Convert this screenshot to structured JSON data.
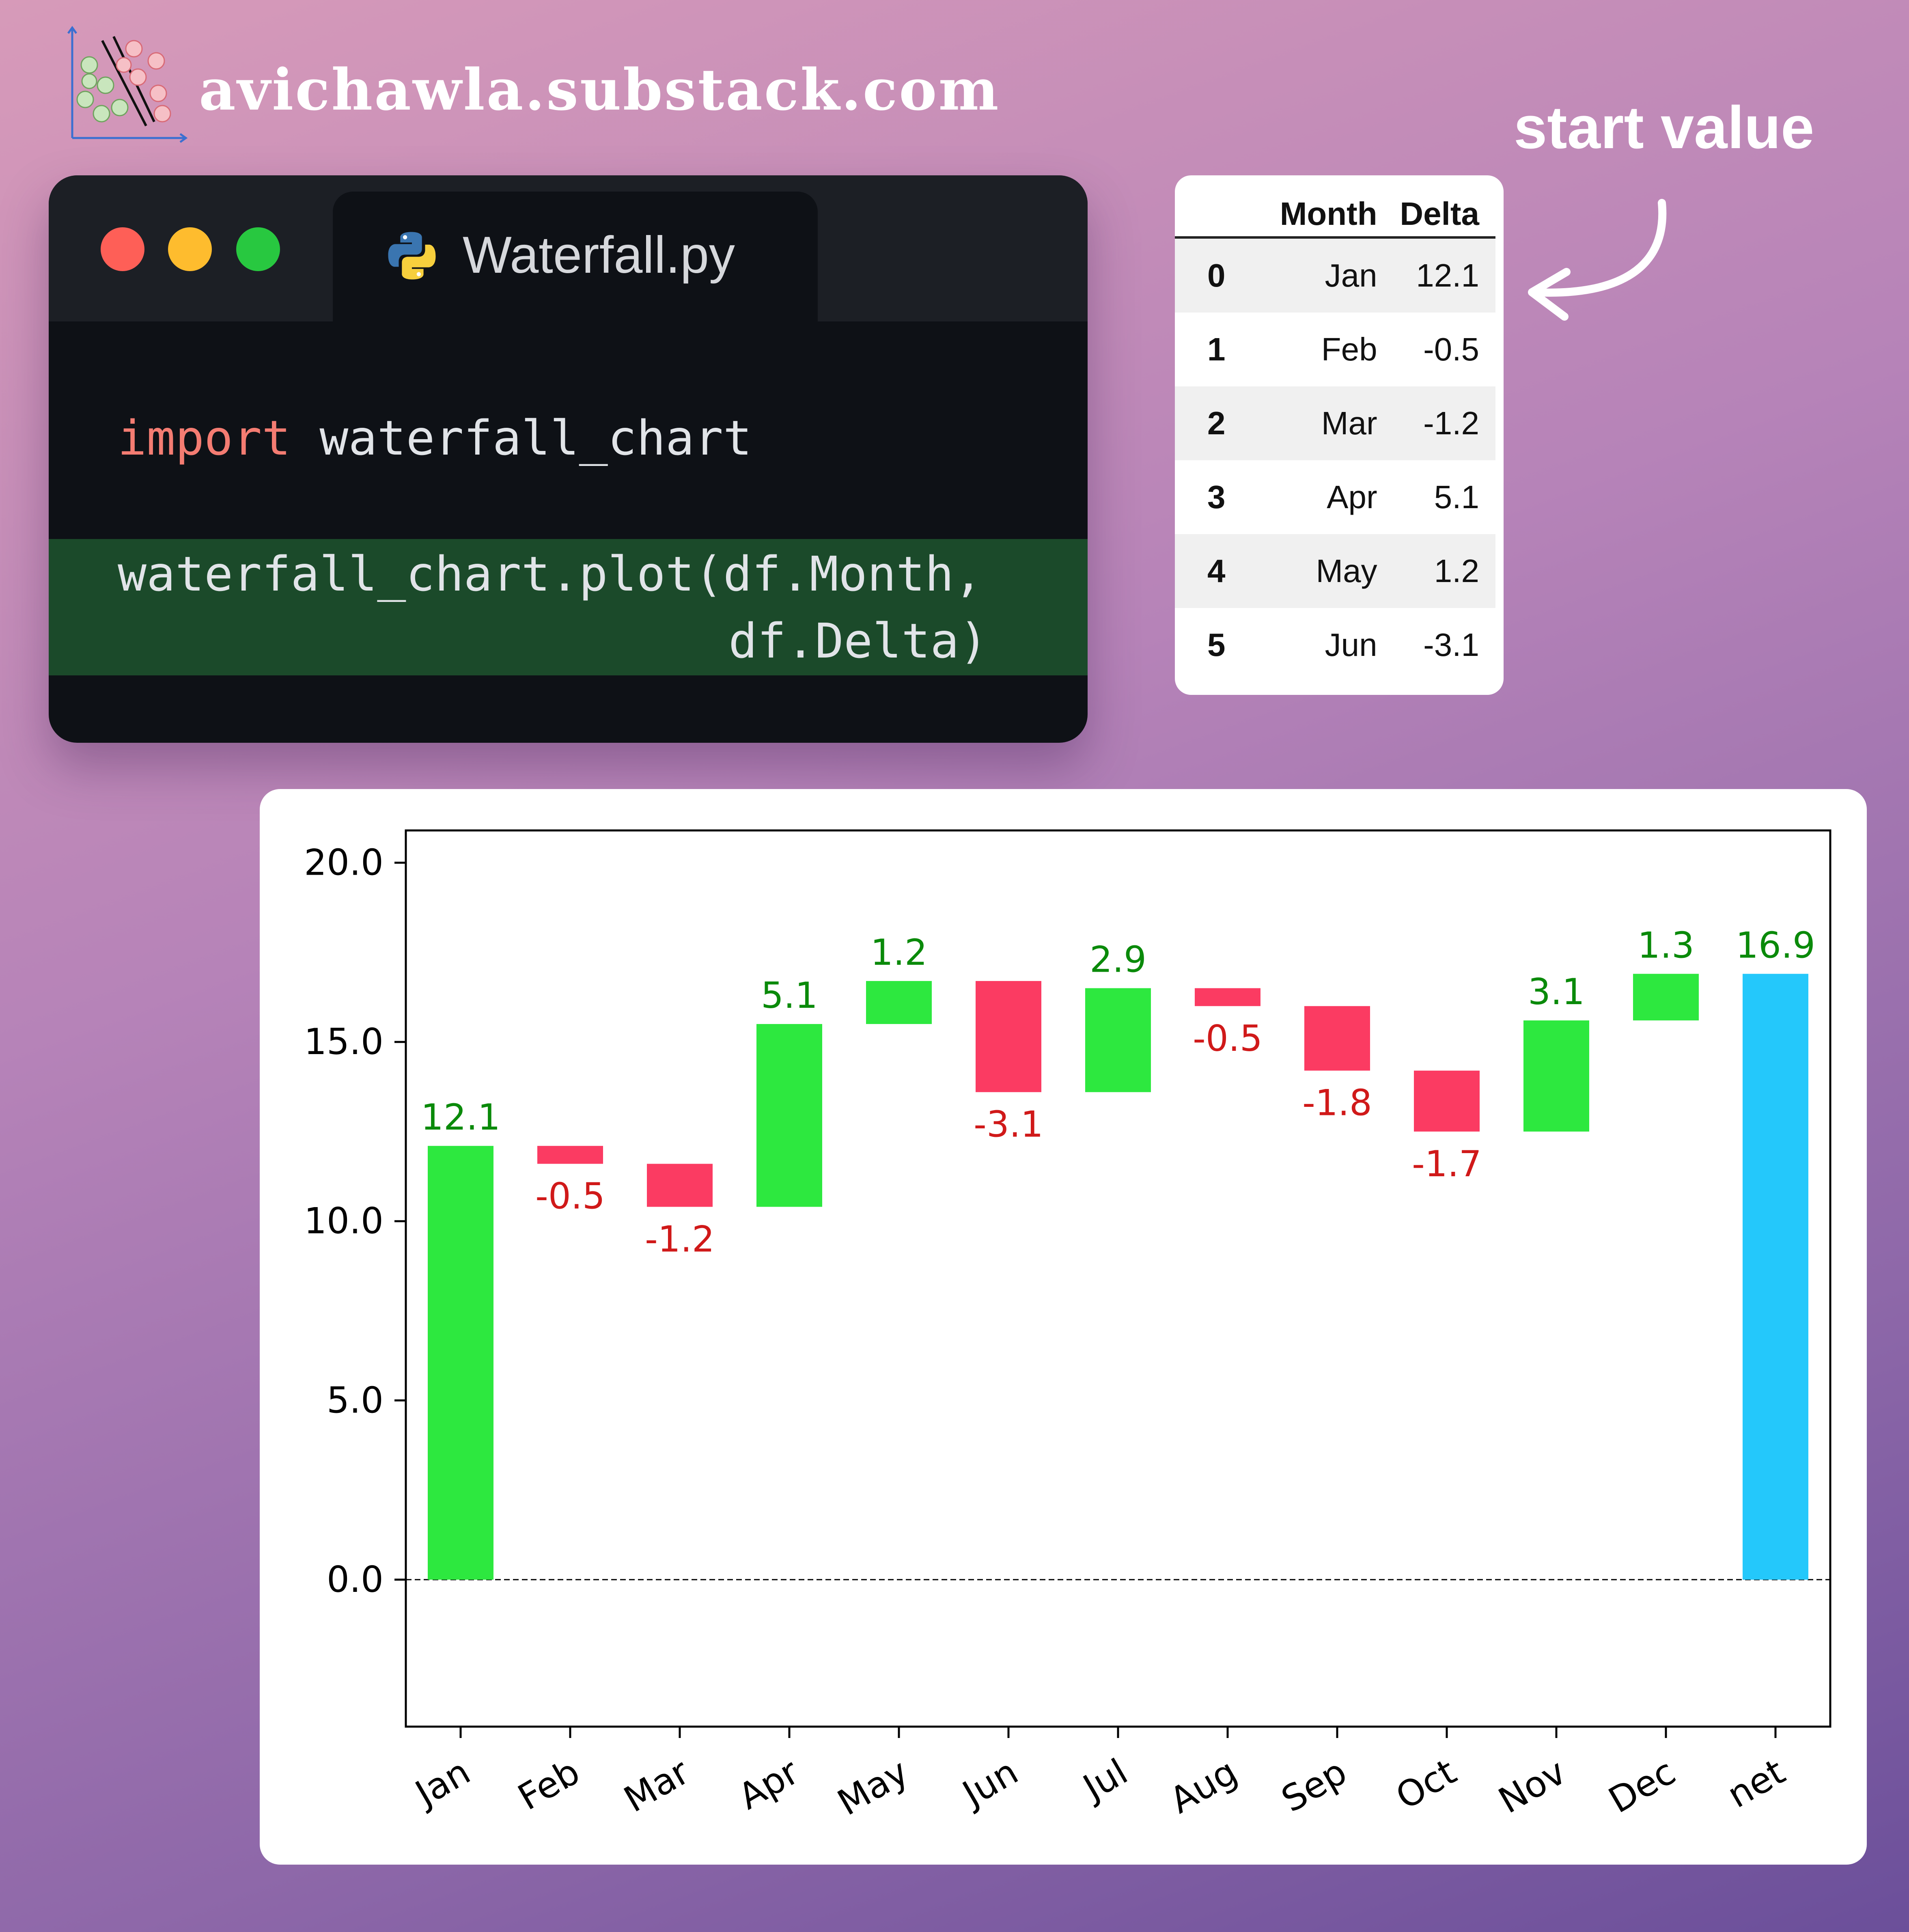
{
  "brand": {
    "site": "avichawla.substack.com",
    "logo_icon": "scatter-plot-logo-icon"
  },
  "code_window": {
    "tab_title": "Waterfall.py",
    "tab_icon": "python-icon",
    "dot_colors": [
      "#fe5f57",
      "#febc2e",
      "#28c840"
    ],
    "lines": {
      "import_kw": "import",
      "import_mod": "waterfall_chart",
      "call_line1": "waterfall_chart.plot(df.Month,",
      "call_line2": "df.Delta)"
    }
  },
  "table": {
    "headers": [
      "",
      "Month",
      "Delta"
    ],
    "rows": [
      [
        "0",
        "Jan",
        "12.1"
      ],
      [
        "1",
        "Feb",
        "-0.5"
      ],
      [
        "2",
        "Mar",
        "-1.2"
      ],
      [
        "3",
        "Apr",
        "5.1"
      ],
      [
        "4",
        "May",
        "1.2"
      ],
      [
        "5",
        "Jun",
        "-3.1"
      ]
    ]
  },
  "annotation": {
    "label": "start value",
    "arrow_icon": "curved-arrow-icon"
  },
  "chart_data": {
    "type": "bar",
    "subtype": "waterfall",
    "title": "",
    "xlabel": "",
    "ylabel": "",
    "categories": [
      "Jan",
      "Feb",
      "Mar",
      "Apr",
      "May",
      "Jun",
      "Jul",
      "Aug",
      "Sep",
      "Oct",
      "Nov",
      "Dec",
      "net"
    ],
    "values": [
      12.1,
      -0.5,
      -1.2,
      5.1,
      1.2,
      -3.1,
      2.9,
      -0.5,
      -1.8,
      -1.7,
      3.1,
      1.3,
      16.9
    ],
    "value_labels": [
      "12.1",
      "-0.5",
      "-1.2",
      "5.1",
      "1.2",
      "-3.1",
      "2.9",
      "-0.5",
      "-1.8",
      "-1.7",
      "3.1",
      "1.3",
      "16.9"
    ],
    "ylim": [
      -4.1,
      20.9
    ],
    "yticks": [
      "0.0",
      "5.0",
      "10.0",
      "15.0",
      "20.0"
    ],
    "ytick_values": [
      0,
      5,
      10,
      15,
      20
    ],
    "baseline": 0,
    "grid": false,
    "colors": {
      "increase": "#2de83f",
      "decrease": "#fb3b62",
      "net": "#24c8fb",
      "label_increase": "#0a8a0a",
      "label_decrease": "#d01919"
    }
  }
}
